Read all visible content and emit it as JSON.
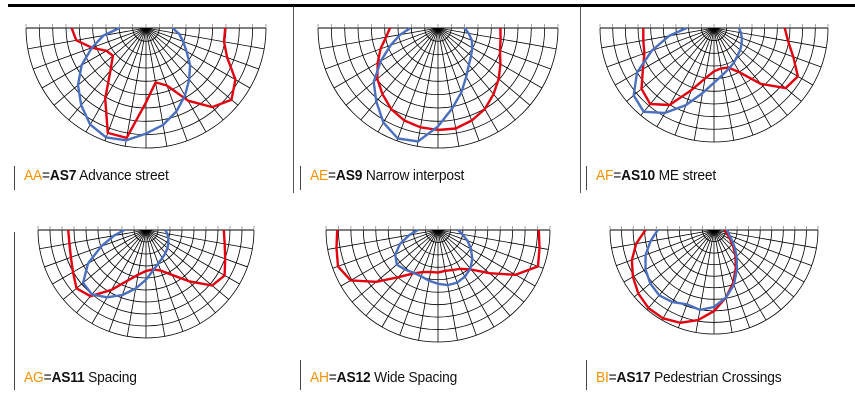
{
  "colors": {
    "code": "#f39200",
    "red_curve": "#e3000f",
    "blue_curve": "#4a6fbf",
    "grid": "#000000"
  },
  "panels": [
    {
      "code": "AA",
      "eq": "=",
      "as": "AS7",
      "desc": "Advance street",
      "red": [
        0.66,
        0.66,
        0.72,
        0.86,
        0.93,
        0.86,
        0.7,
        0.51,
        0.46,
        0.62,
        0.93,
        0.93,
        0.68,
        0.46,
        0.36,
        0.38,
        0.48,
        0.59,
        0.62
      ],
      "blue": [
        0.22,
        0.28,
        0.33,
        0.39,
        0.48,
        0.56,
        0.65,
        0.74,
        0.82,
        0.88,
        0.95,
        0.97,
        0.93,
        0.84,
        0.74,
        0.62,
        0.48,
        0.36,
        0.22
      ]
    },
    {
      "code": "AE",
      "eq": "=",
      "as": "AS9",
      "desc": "Narrow interpost",
      "red": [
        0.52,
        0.53,
        0.55,
        0.6,
        0.66,
        0.72,
        0.78,
        0.82,
        0.85,
        0.85,
        0.84,
        0.82,
        0.78,
        0.72,
        0.66,
        0.58,
        0.51,
        0.44,
        0.4
      ],
      "blue": [
        0.22,
        0.26,
        0.3,
        0.33,
        0.36,
        0.4,
        0.47,
        0.57,
        0.68,
        0.82,
        0.96,
        0.98,
        0.91,
        0.8,
        0.7,
        0.55,
        0.42,
        0.32,
        0.23
      ]
    },
    {
      "code": "AF",
      "eq": "=",
      "as": "AS10",
      "desc": "ME street",
      "red": [
        0.62,
        0.66,
        0.74,
        0.85,
        0.82,
        0.64,
        0.45,
        0.37,
        0.36,
        0.38,
        0.45,
        0.58,
        0.78,
        0.87,
        0.83,
        0.72,
        0.65,
        0.63,
        0.62
      ],
      "blue": [
        0.22,
        0.24,
        0.26,
        0.28,
        0.3,
        0.32,
        0.35,
        0.38,
        0.42,
        0.48,
        0.58,
        0.72,
        0.86,
        0.96,
        0.92,
        0.78,
        0.58,
        0.4,
        0.24
      ]
    },
    {
      "code": "AG",
      "eq": "=",
      "as": "AS11",
      "desc": "Spacing",
      "red": [
        0.72,
        0.74,
        0.78,
        0.84,
        0.8,
        0.62,
        0.48,
        0.4,
        0.37,
        0.38,
        0.42,
        0.5,
        0.64,
        0.8,
        0.84,
        0.78,
        0.74,
        0.72,
        0.72
      ],
      "blue": [
        0.18,
        0.2,
        0.22,
        0.24,
        0.26,
        0.28,
        0.3,
        0.33,
        0.38,
        0.46,
        0.55,
        0.64,
        0.72,
        0.78,
        0.76,
        0.62,
        0.44,
        0.3,
        0.2
      ]
    },
    {
      "code": "AH",
      "eq": "=",
      "as": "AS12",
      "desc": "Wide Spacing",
      "red": [
        0.9,
        0.92,
        0.95,
        0.8,
        0.6,
        0.46,
        0.4,
        0.38,
        0.37,
        0.38,
        0.38,
        0.4,
        0.45,
        0.55,
        0.72,
        0.9,
        0.95,
        0.92,
        0.9
      ],
      "blue": [
        0.18,
        0.22,
        0.28,
        0.34,
        0.4,
        0.45,
        0.48,
        0.5,
        0.5,
        0.48,
        0.46,
        0.44,
        0.44,
        0.46,
        0.48,
        0.44,
        0.36,
        0.26,
        0.18
      ]
    },
    {
      "code": "BI",
      "eq": "=",
      "as": "AS17",
      "desc": "Pedestrian Crossings",
      "red": [
        0.1,
        0.12,
        0.14,
        0.18,
        0.24,
        0.32,
        0.42,
        0.54,
        0.66,
        0.78,
        0.88,
        0.95,
        0.98,
        0.98,
        0.95,
        0.9,
        0.84,
        0.76,
        0.66
      ],
      "blue": [
        0.12,
        0.14,
        0.16,
        0.2,
        0.26,
        0.34,
        0.44,
        0.56,
        0.66,
        0.74,
        0.78,
        0.76,
        0.8,
        0.82,
        0.8,
        0.76,
        0.7,
        0.62,
        0.54
      ]
    }
  ]
}
